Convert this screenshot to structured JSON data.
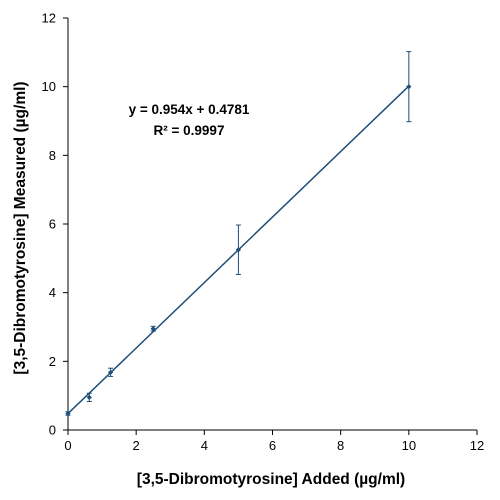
{
  "chart_data": {
    "type": "scatter",
    "xlabel": "[3,5-Dibromotyrosine] Added (µg/ml)",
    "ylabel": "[3,5-Dibromotyrosine] Measured (µg/ml)",
    "xlim": [
      0,
      12
    ],
    "ylim": [
      0,
      12
    ],
    "x_ticks": [
      "0",
      "2",
      "4",
      "6",
      "8",
      "10",
      "12"
    ],
    "y_ticks": [
      "0",
      "2",
      "4",
      "6",
      "8",
      "10",
      "12"
    ],
    "grid": false,
    "legend": "none",
    "annotation_equation": "y = 0.954x + 0.4781",
    "annotation_r2": "R² = 0.9997",
    "series": [
      {
        "x": [
          0,
          0.625,
          1.25,
          2.5,
          5,
          10
        ],
        "y": [
          0.48,
          0.95,
          1.68,
          2.95,
          5.25,
          10.0
        ],
        "yerr": [
          0.05,
          0.12,
          0.12,
          0.07,
          0.72,
          1.02
        ]
      }
    ],
    "trendline": {
      "slope": 0.954,
      "intercept": 0.4781
    },
    "colors": {
      "marker": "#1f4e79",
      "line": "#1f4e79",
      "axis": "#000000"
    }
  }
}
